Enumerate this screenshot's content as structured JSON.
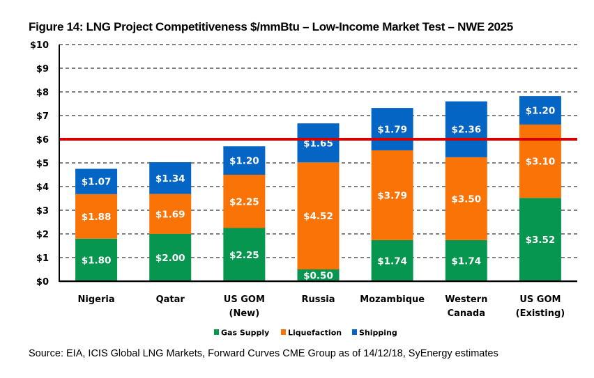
{
  "chart_data": {
    "type": "bar",
    "stacked": true,
    "title": "Figure 14: LNG Project Competitiveness $/mmBtu – Low-Income Market Test – NWE 2025",
    "xlabel": "",
    "ylabel": "",
    "ylim": [
      0,
      10
    ],
    "yticks": [
      0,
      1,
      2,
      3,
      4,
      5,
      6,
      7,
      8,
      9,
      10
    ],
    "ytick_labels": [
      "$0",
      "$1",
      "$2",
      "$3",
      "$4",
      "$5",
      "$6",
      "$7",
      "$8",
      "$9",
      "$10"
    ],
    "grid": "horizontal-dashed",
    "categories": [
      [
        "Nigeria"
      ],
      [
        "Qatar"
      ],
      [
        "US GOM",
        "(New)"
      ],
      [
        "Russia"
      ],
      [
        "Mozambique"
      ],
      [
        "Western",
        "Canada"
      ],
      [
        "US GOM",
        "(Existing)"
      ]
    ],
    "series": [
      {
        "name": "Gas Supply",
        "color": "#079650",
        "values": [
          1.8,
          2.0,
          2.25,
          0.5,
          1.74,
          1.74,
          3.52
        ],
        "labels": [
          "$1.80",
          "$2.00",
          "$2.25",
          "$0.50",
          "$1.74",
          "$1.74",
          "$3.52"
        ]
      },
      {
        "name": "Liquefaction",
        "color": "#F97306",
        "values": [
          1.88,
          1.69,
          2.25,
          4.52,
          3.79,
          3.5,
          3.1
        ],
        "labels": [
          "$1.88",
          "$1.69",
          "$2.25",
          "$4.52",
          "$3.79",
          "$3.50",
          "$3.10"
        ]
      },
      {
        "name": "Shipping",
        "color": "#0565C4",
        "values": [
          1.07,
          1.34,
          1.2,
          1.65,
          1.79,
          2.36,
          1.2
        ],
        "labels": [
          "$1.07",
          "$1.34",
          "$1.20",
          "$1.65",
          "$1.79",
          "$2.36",
          "$1.20"
        ]
      }
    ],
    "reference_line": {
      "value": 6,
      "color": "#D40000"
    },
    "legend": {
      "position": "bottom",
      "entries": [
        "Gas Supply",
        "Liquefaction",
        "Shipping"
      ]
    },
    "source": "Source: EIA, ICIS Global LNG Markets, Forward Curves CME Group as of 14/12/18, SyEnergy estimates"
  }
}
